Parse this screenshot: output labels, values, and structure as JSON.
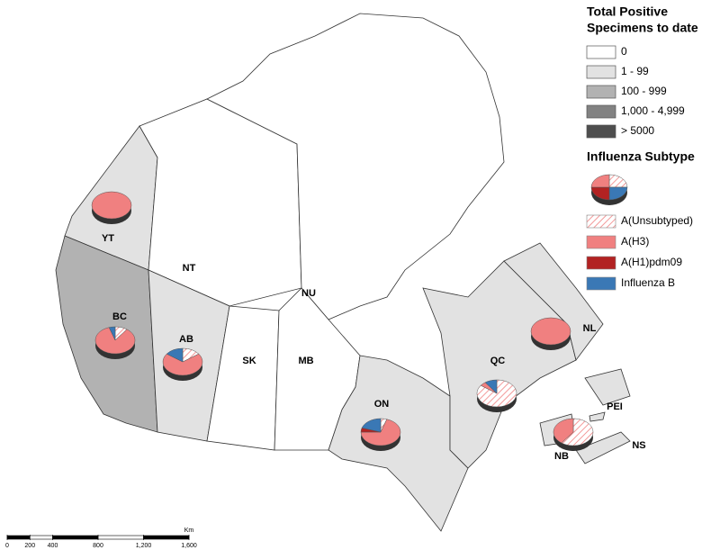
{
  "legend_fill": {
    "title_lines": [
      "Total Positive",
      "Specimens to date"
    ],
    "items": [
      {
        "label": "0",
        "color": "#ffffff"
      },
      {
        "label": "1 - 99",
        "color": "#e2e2e2"
      },
      {
        "label": "100 - 999",
        "color": "#b2b2b2"
      },
      {
        "label": "1,000 - 4,999",
        "color": "#828282"
      },
      {
        "label": "> 5000",
        "color": "#4e4e4e"
      }
    ]
  },
  "legend_subtype": {
    "title": "Influenza Subtype",
    "items": [
      {
        "label": "A(Unsubtyped)",
        "color": "#f08080",
        "hatched": true
      },
      {
        "label": "A(H3)",
        "color": "#f08080",
        "hatched": false
      },
      {
        "label": "A(H1)pdm09",
        "color": "#b22222",
        "hatched": false
      },
      {
        "label": "Influenza B",
        "color": "#3a78b5",
        "hatched": false
      }
    ]
  },
  "provinces": [
    {
      "label": "YT",
      "level": 1,
      "shares": [
        0,
        100,
        0,
        0
      ]
    },
    {
      "label": "NT",
      "level": 0
    },
    {
      "label": "NU",
      "level": 0
    },
    {
      "label": "BC",
      "level": 2,
      "shares": [
        10,
        85,
        0,
        5
      ]
    },
    {
      "label": "AB",
      "level": 1,
      "shares": [
        15,
        70,
        0,
        15
      ]
    },
    {
      "label": "SK",
      "level": 0
    },
    {
      "label": "MB",
      "level": 0
    },
    {
      "label": "ON",
      "level": 1,
      "shares": [
        5,
        70,
        5,
        20
      ]
    },
    {
      "label": "QC",
      "level": 1,
      "shares": [
        85,
        5,
        0,
        10
      ]
    },
    {
      "label": "NL",
      "level": 1,
      "shares": [
        0,
        100,
        0,
        0
      ]
    },
    {
      "label": "NB",
      "level": 1,
      "shares": [
        60,
        40,
        0,
        0
      ]
    },
    {
      "label": "PEI",
      "level": 1
    },
    {
      "label": "NS",
      "level": 1
    }
  ],
  "scale_bar": {
    "unit": "Km",
    "ticks": [
      0,
      200,
      400,
      800,
      {
        "value": 1200,
        "label": "1,200"
      },
      {
        "value": 1600,
        "label": "1,600"
      }
    ]
  }
}
